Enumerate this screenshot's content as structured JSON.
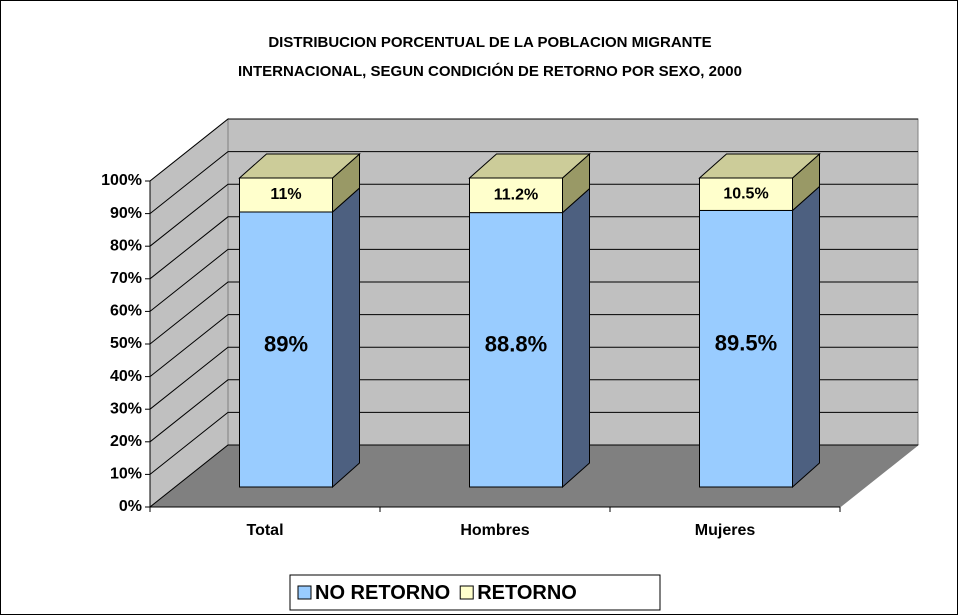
{
  "chart_data": {
    "type": "bar3d_stacked",
    "title": [
      "DISTRIBUCION PORCENTUAL DE LA POBLACION MIGRANTE",
      "INTERNACIONAL, SEGUN CONDICIÓN DE RETORNO POR SEXO, 2000"
    ],
    "categories": [
      "Total",
      "Hombres",
      "Mujeres"
    ],
    "series": [
      {
        "name": "NO RETORNO",
        "color": "#99ccff",
        "side_color": "#4d6080",
        "values": [
          89,
          88.8,
          89.5
        ],
        "value_labels": [
          "89%",
          "88.8%",
          "89.5%"
        ]
      },
      {
        "name": "RETORNO",
        "color": "#ffffcc",
        "side_color": "#999966",
        "top_color": "#cccc99",
        "values": [
          11,
          11.2,
          10.5
        ],
        "value_labels": [
          "11%",
          "11.2%",
          "10.5%"
        ]
      }
    ],
    "ylim": [
      0,
      100
    ],
    "yticks": [
      {
        "value": 0,
        "label": "0%"
      },
      {
        "value": 10,
        "label": "10%"
      },
      {
        "value": 20,
        "label": "20%"
      },
      {
        "value": 30,
        "label": "30%"
      },
      {
        "value": 40,
        "label": "40%"
      },
      {
        "value": 50,
        "label": "50%"
      },
      {
        "value": 60,
        "label": "60%"
      },
      {
        "value": 70,
        "label": "70%"
      },
      {
        "value": 80,
        "label": "80%"
      },
      {
        "value": 90,
        "label": "90%"
      },
      {
        "value": 100,
        "label": "100%"
      }
    ],
    "grid": true,
    "legend": "bottom"
  }
}
